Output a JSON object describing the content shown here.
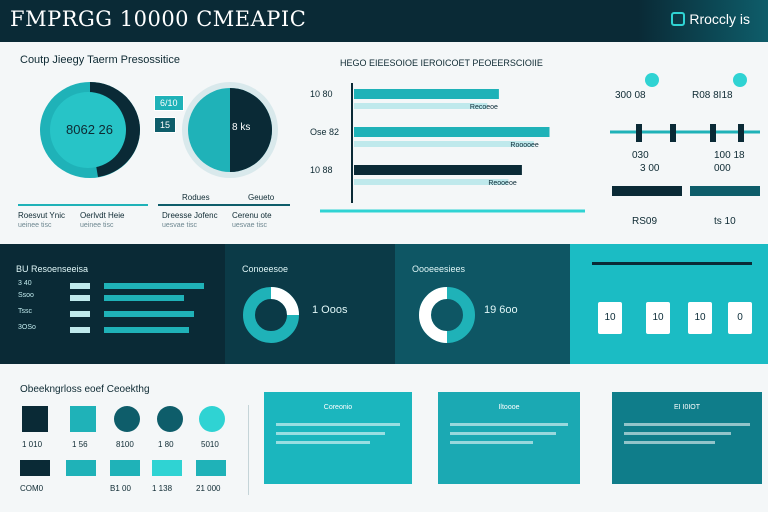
{
  "header": {
    "title": "FMPRGG 10000 CMEAPIC",
    "brand": "Rroccly is"
  },
  "section1": {
    "title": "Coutp Jieegy Taerm Presossitice",
    "pie_left_label": "8062 26",
    "pill_top": "6/10",
    "pill_bottom": "15",
    "pie_right_label": "8 ks",
    "captions": [
      {
        "main": "Roesvut Ynic",
        "sub": "ueinee tisc"
      },
      {
        "main": "Oerlvdt Heie",
        "sub": "ueinee tisc"
      },
      {
        "main": "Dreesse Jofenc",
        "sub": "uesvae tisc"
      },
      {
        "main": "Cerenu ote",
        "sub": "uesvae tisc"
      }
    ],
    "cap_top_left": "Rodues",
    "cap_top_right": "Geueto"
  },
  "bar_chart": {
    "title": "HEGO EIEESOIOE IEROICOET PEOEERSCIOIIE",
    "bars": [
      {
        "label": "10 80",
        "value": 0.63
      },
      {
        "label": "Ose 82",
        "value": 0.85
      },
      {
        "label": "10 88",
        "value": 0.73
      }
    ],
    "value_labels": [
      "Recoeoe",
      "Rooooee",
      "Reooeoe"
    ]
  },
  "infographic": {
    "top_left": "300 08",
    "top_right": "R08 8I18",
    "row1_left": "030",
    "row1_right": "100 18",
    "row2_left": "3 00",
    "row2_right": "000",
    "bottom_left": "RS09",
    "bottom_right": "ts 10"
  },
  "band": {
    "p1_title": "BU Resoenseeisa",
    "p1_rows": [
      "3 40",
      "Ssoo",
      "Tssc",
      "3OSo"
    ],
    "p2_title": "Conoeesoe",
    "p2_value": "1 Ooos",
    "p3_title": "Oooeeesiees",
    "p3_value": "19 6oo",
    "p4_cards": [
      "10",
      "10",
      "10",
      "0"
    ]
  },
  "section3": {
    "title": "Obeekngrloss eoef Ceoekthg",
    "tiles_top": [
      "1 010",
      "1 56",
      "8100",
      "1 80",
      "5010"
    ],
    "tiles_bottom": [
      "COM0",
      "B1 00",
      "1 138",
      "21 000"
    ],
    "panels": [
      "Coreonio",
      "Iltoooe",
      "EI I0IOT"
    ]
  },
  "colors": {
    "navy": "#0a2a36",
    "teal": "#1fb2b8",
    "cyan": "#2fd3d3"
  }
}
